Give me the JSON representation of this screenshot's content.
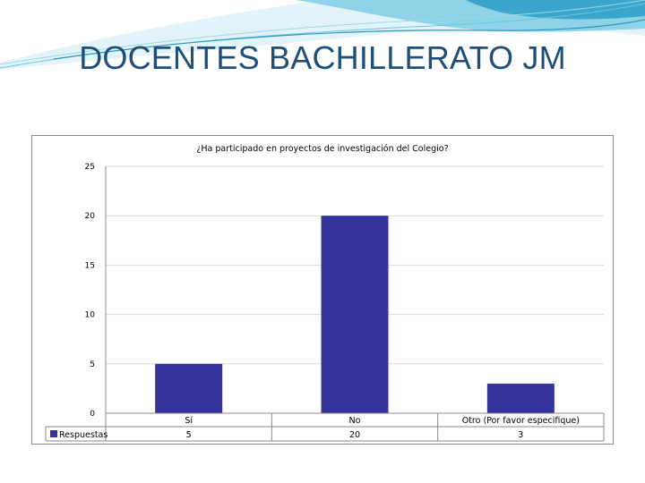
{
  "slide": {
    "title": "DOCENTES BACHILLERATO JM"
  },
  "colors": {
    "bar": "#333399",
    "title": "#1f4e79",
    "wave_light": "#bfe7f3",
    "wave_mid": "#6cc5df",
    "wave_dark": "#2f97bf"
  },
  "chart_data": {
    "type": "bar",
    "title": "¿Ha participado en proyectos de investigación del Colegio?",
    "categories": [
      "Sí",
      "No",
      "Otro (Por favor especifique)"
    ],
    "series": [
      {
        "name": "Respuestas",
        "values": [
          5,
          20,
          3
        ]
      }
    ],
    "value_labels": [
      "5",
      "20",
      "3"
    ],
    "yticks": [
      0,
      5,
      10,
      15,
      20,
      25
    ],
    "ylim": [
      0,
      25
    ],
    "grid": true,
    "legend": "bottom-left data table"
  }
}
